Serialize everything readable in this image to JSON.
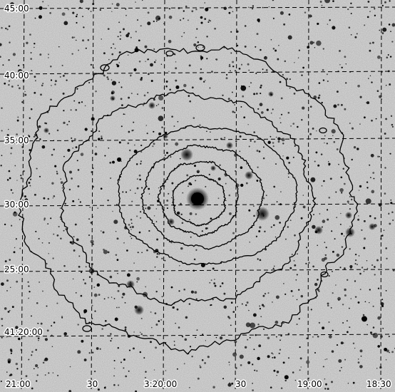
{
  "image": {
    "description_labels": {
      "dec_ticks": [
        "45:00",
        "40:00",
        "35:00",
        "30:00",
        "25:00",
        "41:20:00"
      ],
      "ra_ticks": [
        "21:00",
        "30",
        "3:20:00",
        "30",
        "19:00",
        "18:30"
      ]
    },
    "colors": {
      "sky_background": "#d9d9d9",
      "grid": "#000000",
      "contour": "#000000",
      "stars": "#000000"
    },
    "grid_style": "dashed",
    "contour_levels": 6
  }
}
